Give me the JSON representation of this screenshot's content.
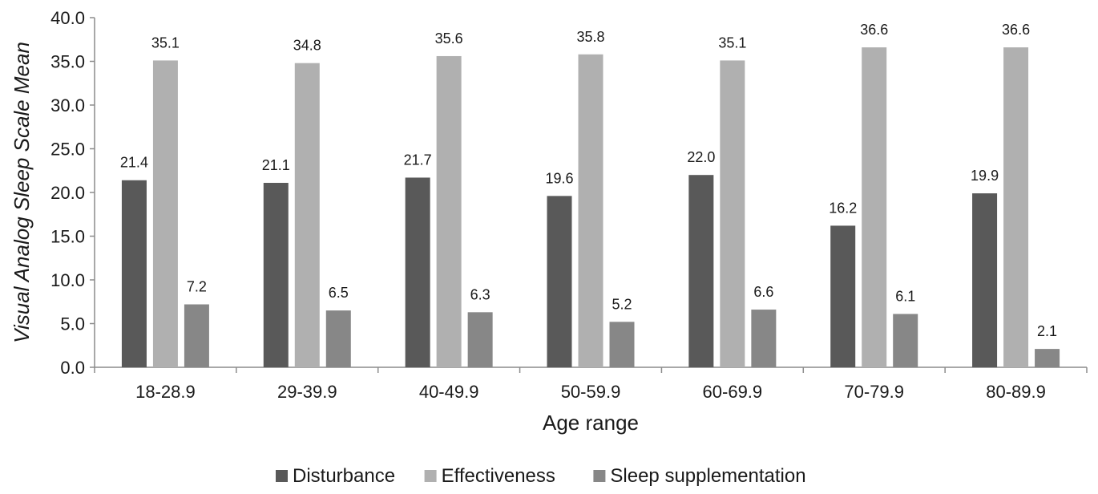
{
  "chart_data": {
    "type": "bar",
    "xlabel": "Age range",
    "ylabel": "Visual Analog Sleep Scale Mean",
    "ylim": [
      0,
      40
    ],
    "ytick_step": 5,
    "ytick_labels": [
      "0.0",
      "5.0",
      "10.0",
      "15.0",
      "20.0",
      "25.0",
      "30.0",
      "35.0",
      "40.0"
    ],
    "grid": false,
    "legend_position": "bottom",
    "categories": [
      "18-28.9",
      "29-39.9",
      "40-49.9",
      "50-59.9",
      "60-69.9",
      "70-79.9",
      "80-89.9"
    ],
    "series": [
      {
        "name": "Disturbance",
        "color": "#595959",
        "values": [
          21.4,
          21.1,
          21.7,
          19.6,
          22.0,
          16.2,
          19.9
        ],
        "labels": [
          "21.4",
          "21.1",
          "21.7",
          "19.6",
          "22.0",
          "16.2",
          "19.9"
        ]
      },
      {
        "name": "Effectiveness",
        "color": "#b0b0b0",
        "values": [
          35.1,
          34.8,
          35.6,
          35.8,
          35.1,
          36.6,
          36.6
        ],
        "labels": [
          "35.1",
          "34.8",
          "35.6",
          "35.8",
          "35.1",
          "36.6",
          "36.6"
        ]
      },
      {
        "name": "Sleep supplementation",
        "color": "#878787",
        "values": [
          7.2,
          6.5,
          6.3,
          5.2,
          6.6,
          6.1,
          2.1
        ],
        "labels": [
          "7.2",
          "6.5",
          "6.3",
          "5.2",
          "6.6",
          "6.1",
          "2.1"
        ]
      }
    ]
  }
}
